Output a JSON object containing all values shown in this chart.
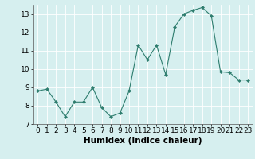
{
  "x": [
    0,
    1,
    2,
    3,
    4,
    5,
    6,
    7,
    8,
    9,
    10,
    11,
    12,
    13,
    14,
    15,
    16,
    17,
    18,
    19,
    20,
    21,
    22,
    23
  ],
  "y": [
    8.8,
    8.9,
    8.2,
    7.4,
    8.2,
    8.2,
    9.0,
    7.9,
    7.4,
    7.6,
    8.8,
    11.3,
    10.5,
    11.3,
    9.7,
    12.3,
    13.0,
    13.2,
    13.35,
    12.9,
    9.85,
    9.8,
    9.4,
    9.4
  ],
  "line_color": "#2e7d6e",
  "marker": "D",
  "marker_size": 2.0,
  "bg_color": "#d6efef",
  "grid_color": "#ffffff",
  "xlabel": "Humidex (Indice chaleur)",
  "xlim": [
    -0.5,
    23.5
  ],
  "ylim": [
    7.0,
    13.5
  ],
  "yticks": [
    7,
    8,
    9,
    10,
    11,
    12,
    13
  ],
  "xticks": [
    0,
    1,
    2,
    3,
    4,
    5,
    6,
    7,
    8,
    9,
    10,
    11,
    12,
    13,
    14,
    15,
    16,
    17,
    18,
    19,
    20,
    21,
    22,
    23
  ],
  "xlabel_fontsize": 7.5,
  "tick_fontsize": 6.5
}
